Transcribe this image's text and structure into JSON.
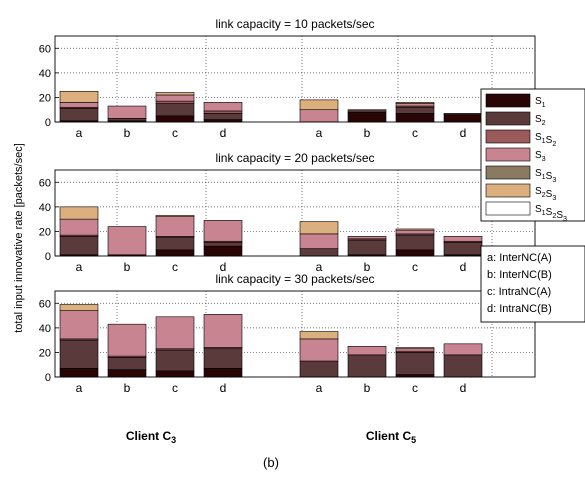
{
  "figure_label": "(b)",
  "ylabel": "total input innovative rate [packets/sec]",
  "group_labels": [
    {
      "main": "Client C",
      "sub": "3"
    },
    {
      "main": "Client C",
      "sub": "5"
    }
  ],
  "legend_components": [
    {
      "parts": [
        {
          "t": "S",
          "s": "1"
        }
      ],
      "color": "#2a0505"
    },
    {
      "parts": [
        {
          "t": "S",
          "s": "2"
        }
      ],
      "color": "#5a3a3a"
    },
    {
      "parts": [
        {
          "t": "S",
          "s": "1"
        },
        {
          "t": "S",
          "s": "2"
        }
      ],
      "color": "#9a5a5a"
    },
    {
      "parts": [
        {
          "t": "S",
          "s": "3"
        }
      ],
      "color": "#c98491"
    },
    {
      "parts": [
        {
          "t": "S",
          "s": "1"
        },
        {
          "t": "S",
          "s": "3"
        }
      ],
      "color": "#8a7a64"
    },
    {
      "parts": [
        {
          "t": "S",
          "s": "2"
        },
        {
          "t": "S",
          "s": "3"
        }
      ],
      "color": "#dcb07e"
    },
    {
      "parts": [
        {
          "t": "S",
          "s": "1"
        },
        {
          "t": "S",
          "s": "2"
        },
        {
          "t": "S",
          "s": "3"
        }
      ],
      "color": "#ffffff"
    }
  ],
  "legend_schemes": [
    "a: InterNC(A)",
    "b: InterNC(B)",
    "c: IntraNC(A)",
    "d: IntraNC(B)"
  ],
  "chart_data": [
    {
      "type": "bar",
      "stacked": true,
      "title": "link capacity = 10 packets/sec",
      "categories": [
        "a",
        "b",
        "c",
        "d",
        "",
        "a",
        "b",
        "c",
        "d",
        ""
      ],
      "ylim": [
        0,
        70
      ],
      "yticks": [
        0,
        20,
        40,
        60
      ],
      "grid": true,
      "series": [
        {
          "name": "S1",
          "values": [
            1,
            1,
            5,
            2,
            null,
            0,
            8,
            7,
            6,
            null
          ]
        },
        {
          "name": "S2",
          "values": [
            10,
            2,
            10,
            5,
            null,
            0,
            2,
            5,
            1,
            null
          ]
        },
        {
          "name": "S1S2",
          "values": [
            1,
            0,
            2,
            2,
            null,
            0,
            0,
            1,
            0,
            null
          ]
        },
        {
          "name": "S3",
          "values": [
            4,
            10,
            5,
            7,
            null,
            10,
            0,
            2,
            0,
            null
          ]
        },
        {
          "name": "S1S3",
          "values": [
            0,
            0,
            0,
            0,
            null,
            0,
            0,
            0,
            0,
            null
          ]
        },
        {
          "name": "S2S3",
          "values": [
            9,
            0,
            2,
            0,
            null,
            8,
            0,
            1,
            0,
            null
          ]
        },
        {
          "name": "S1S2S3",
          "values": [
            0,
            0,
            0,
            0,
            null,
            0,
            0,
            0,
            0,
            null
          ]
        }
      ]
    },
    {
      "type": "bar",
      "stacked": true,
      "title": "link capacity = 20 packets/sec",
      "categories": [
        "a",
        "b",
        "c",
        "d",
        "",
        "a",
        "b",
        "c",
        "d",
        ""
      ],
      "ylim": [
        0,
        70
      ],
      "yticks": [
        0,
        20,
        40,
        60
      ],
      "grid": true,
      "series": [
        {
          "name": "S1",
          "values": [
            1,
            1,
            5,
            8,
            null,
            0,
            1,
            5,
            1,
            null
          ]
        },
        {
          "name": "S2",
          "values": [
            15,
            0,
            10,
            3,
            null,
            6,
            12,
            12,
            10,
            null
          ]
        },
        {
          "name": "S1S2",
          "values": [
            1,
            0,
            1,
            1,
            null,
            0,
            1,
            1,
            1,
            null
          ]
        },
        {
          "name": "S3",
          "values": [
            13,
            23,
            16,
            17,
            null,
            12,
            2,
            3,
            4,
            null
          ]
        },
        {
          "name": "S1S3",
          "values": [
            0,
            0,
            0,
            0,
            null,
            0,
            0,
            0,
            0,
            null
          ]
        },
        {
          "name": "S2S3",
          "values": [
            10,
            0,
            1,
            0,
            null,
            10,
            0,
            1,
            0,
            null
          ]
        },
        {
          "name": "S1S2S3",
          "values": [
            0,
            0,
            0,
            0,
            null,
            0,
            0,
            0,
            0,
            null
          ]
        }
      ]
    },
    {
      "type": "bar",
      "stacked": true,
      "title": "link capacity = 30 packets/sec",
      "categories": [
        "a",
        "b",
        "c",
        "d",
        "",
        "a",
        "b",
        "c",
        "d",
        ""
      ],
      "ylim": [
        0,
        70
      ],
      "yticks": [
        0,
        20,
        40,
        60
      ],
      "grid": true,
      "series": [
        {
          "name": "S1",
          "values": [
            7,
            6,
            5,
            7,
            null,
            0,
            0,
            2,
            0,
            null
          ]
        },
        {
          "name": "S2",
          "values": [
            23,
            10,
            17,
            16,
            null,
            13,
            18,
            18,
            18,
            null
          ]
        },
        {
          "name": "S1S2",
          "values": [
            1,
            1,
            1,
            1,
            null,
            0,
            0,
            1,
            0,
            null
          ]
        },
        {
          "name": "S3",
          "values": [
            23,
            26,
            26,
            27,
            null,
            18,
            7,
            2,
            9,
            null
          ]
        },
        {
          "name": "S1S3",
          "values": [
            0,
            0,
            0,
            0,
            null,
            0,
            0,
            0,
            0,
            null
          ]
        },
        {
          "name": "S2S3",
          "values": [
            5,
            0,
            0,
            0,
            null,
            6,
            0,
            1,
            0,
            null
          ]
        },
        {
          "name": "S1S2S3",
          "values": [
            0,
            0,
            0,
            0,
            null,
            0,
            0,
            0,
            0,
            null
          ]
        }
      ]
    }
  ]
}
